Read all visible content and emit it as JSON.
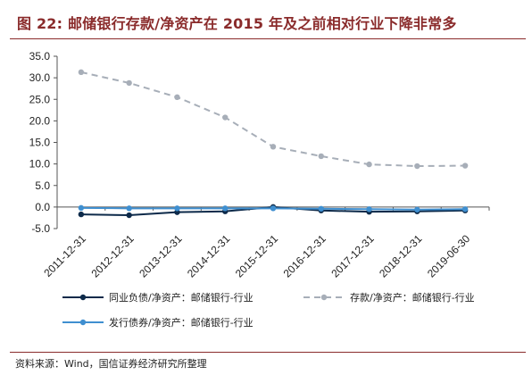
{
  "figure": {
    "title": "图 22: 邮储银行存款/净资产在 2015 年及之前相对行业下降非常多",
    "source": "资料来源：Wind，国信证券经济研究所整理"
  },
  "chart_data": {
    "type": "line",
    "title": "",
    "xlabel": "",
    "ylabel": "",
    "ylim": [
      -5,
      35
    ],
    "yticks": [
      35.0,
      30.0,
      25.0,
      20.0,
      15.0,
      10.0,
      5.0,
      0.0,
      -5.0
    ],
    "ytick_labels": [
      "35.0",
      "30.0",
      "25.0",
      "20.0",
      "15.0",
      "10.0",
      "5.0",
      "0.0",
      "-5.0"
    ],
    "categories": [
      "2011-12-31",
      "2012-12-31",
      "2013-12-31",
      "2014-12-31",
      "2015-12-31",
      "2016-12-31",
      "2017-12-31",
      "2018-12-31",
      "2019-06-30"
    ],
    "grid": false,
    "legend_position": "bottom",
    "series": [
      {
        "name": "同业负债/净资产：邮储银行-行业",
        "values": [
          -1.7,
          -1.9,
          -1.2,
          -1.0,
          0.0,
          -0.8,
          -1.1,
          -1.0,
          -0.8
        ],
        "color": "#0d2a4a",
        "dash": "solid"
      },
      {
        "name": "存款/净资产：邮储银行-行业",
        "values": [
          31.3,
          28.8,
          25.5,
          20.8,
          14.0,
          11.8,
          9.9,
          9.5,
          9.6
        ],
        "color": "#a7aeb8",
        "dash": "dashed"
      },
      {
        "name": "发行债券/净资产：邮储银行-行业",
        "values": [
          -0.2,
          -0.3,
          -0.3,
          -0.3,
          -0.3,
          -0.4,
          -0.5,
          -0.6,
          -0.5
        ],
        "color": "#3f8fd0",
        "dash": "solid"
      }
    ]
  }
}
